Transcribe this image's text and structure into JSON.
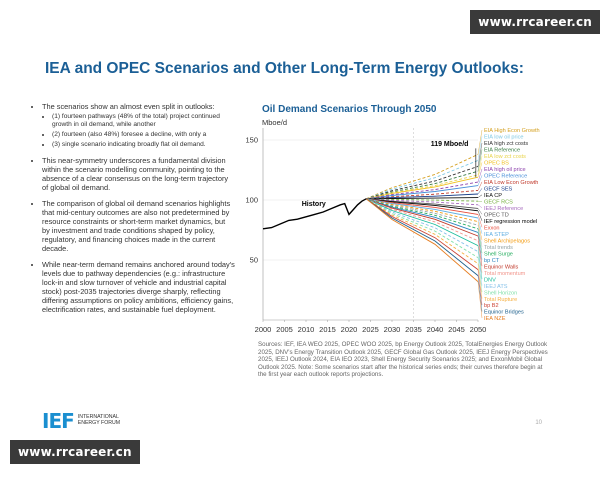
{
  "watermark": "www.rrcareer.cn",
  "slide": {
    "title": "IEA and OPEC Scenarios and Other Long-Term Energy Outlooks:",
    "bullets": {
      "b1": "The scenarios show an almost even split in outlooks:",
      "b1_sub1": "(1) fourteen pathways (48% of the total) project continued growth in oil demand, while another",
      "b1_sub2": "(2) fourteen (also 48%) foresee a decline, with only a",
      "b1_sub3": "(3) single scenario indicating broadly flat oil demand.",
      "b2": "This near-symmetry underscores a fundamental division within the scenario modelling community, pointing to the absence of a clear consensus on the long-term trajectory of global oil demand.",
      "b3": "The comparison of global oil demand scenarios highlights that mid-century outcomes are also not predetermined by resource constraints or short-term market dynamics, but by investment and trade conditions shaped by policy, regulatory, and financing choices made in the current decade.",
      "b4": "While near-term demand remains anchored around today's levels due to pathway dependencies (e.g.: infrastructure lock-in and slow turnover of vehicle and industrial capital stock) post-2035 trajectories diverge sharply, reflecting differing assumptions on policy ambitions, efficiency gains, electrification rates, and sustainable fuel deployment."
    },
    "sources": "Sources: IEF, IEA WEO 2025, OPEC WOO 2025, bp Energy Outlook 2025, TotalEnergies Energy Outlook 2025, DNV's Energy Transition Outlook 2025, GECF Global Gas Outlook 2025, IEEJ Energy Perspectives 2025, IEEJ Outlook 2024, EIA IEO 2023, Shell Energy Security Scenarios 2025; and ExxonMobil Global Outlook 2025. Note: Some scenarios start after the historical series ends; their curves therefore begin at the first year each outlook reports projections.",
    "logo": {
      "mark": "IEF",
      "text": "INTERNATIONAL ENERGY FORUM"
    },
    "page_number": "10"
  },
  "chart_data": {
    "type": "line",
    "title": "Oil Demand Scenarios Through 2050",
    "ylabel": "Mboe/d",
    "xlabel": "",
    "xlim": [
      2000,
      2050
    ],
    "ylim": [
      0,
      160
    ],
    "x_ticks": [
      "2000",
      "2005",
      "2010",
      "2015",
      "2020",
      "2025",
      "2030",
      "2035",
      "2040",
      "2045",
      "2050"
    ],
    "y_ticks": [
      "50",
      "100",
      "150"
    ],
    "annotation": "119 Mboe/d",
    "history_label": "History",
    "history": {
      "x": [
        2000,
        2002,
        2004,
        2006,
        2008,
        2010,
        2012,
        2014,
        2016,
        2018,
        2019,
        2020,
        2021,
        2022,
        2023,
        2024
      ],
      "y": [
        76,
        77,
        80,
        83,
        84,
        86,
        88,
        90,
        93,
        96,
        97,
        88,
        92,
        96,
        99,
        101
      ]
    },
    "series": [
      {
        "name": "EIA High Econ Growth",
        "color": "#d4a020",
        "style": "dash",
        "y2050": 138
      },
      {
        "name": "EIA low oil price",
        "color": "#7ec8e3",
        "style": "dash",
        "y2050": 133
      },
      {
        "name": "EIA high zct costs",
        "color": "#333333",
        "style": "dash",
        "y2050": 128
      },
      {
        "name": "EIA Reference",
        "color": "#3a7d44",
        "style": "dash",
        "y2050": 124
      },
      {
        "name": "EIA low zct costs",
        "color": "#e8d44d",
        "style": "dash",
        "y2050": 121
      },
      {
        "name": "OPEC BS",
        "color": "#f0c020",
        "style": "solid",
        "y2050": 119
      },
      {
        "name": "EIA high oil price",
        "color": "#8e44ad",
        "style": "dash",
        "y2050": 115
      },
      {
        "name": "OPEC Reference",
        "color": "#4a90d9",
        "style": "solid",
        "y2050": 112
      },
      {
        "name": "EIA Low Econ Growth",
        "color": "#c0392b",
        "style": "dash",
        "y2050": 108
      },
      {
        "name": "GECF SES",
        "color": "#1a3e8a",
        "style": "solid",
        "y2050": 105
      },
      {
        "name": "IEA CP",
        "color": "#111111",
        "style": "solid",
        "y2050": 102
      },
      {
        "name": "GECF RCS",
        "color": "#76b041",
        "style": "dash",
        "y2050": 99
      },
      {
        "name": "IEEJ Reference",
        "color": "#a569bd",
        "style": "dash",
        "y2050": 96
      },
      {
        "name": "OPEC TD",
        "color": "#555555",
        "style": "solid",
        "y2050": 93
      },
      {
        "name": "IEF regression model",
        "color": "#000000",
        "style": "solid",
        "y2050": 91
      },
      {
        "name": "Exxon",
        "color": "#e74c3c",
        "style": "solid",
        "y2050": 88
      },
      {
        "name": "IEA STEP",
        "color": "#5dade2",
        "style": "solid",
        "y2050": 85
      },
      {
        "name": "Shell Archipelagos",
        "color": "#f39c12",
        "style": "dash",
        "y2050": 82
      },
      {
        "name": "Total trends",
        "color": "#95a5a6",
        "style": "dash",
        "y2050": 79
      },
      {
        "name": "Shell Surge",
        "color": "#27ae60",
        "style": "dash",
        "y2050": 76
      },
      {
        "name": "bp CT",
        "color": "#2e86c1",
        "style": "solid",
        "y2050": 73
      },
      {
        "name": "Equinor Walls",
        "color": "#c0392b",
        "style": "solid",
        "y2050": 70
      },
      {
        "name": "Total momentum",
        "color": "#f1948a",
        "style": "dash",
        "y2050": 66
      },
      {
        "name": "DNV",
        "color": "#1abc9c",
        "style": "solid",
        "y2050": 62
      },
      {
        "name": "IEEJ ATS",
        "color": "#85c1e9",
        "style": "dash",
        "y2050": 57
      },
      {
        "name": "Shell Horizon",
        "color": "#82e0aa",
        "style": "dash",
        "y2050": 52
      },
      {
        "name": "Total Rupture",
        "color": "#f5b041",
        "style": "dash",
        "y2050": 47
      },
      {
        "name": "bp B2",
        "color": "#cb4335",
        "style": "solid",
        "y2050": 42
      },
      {
        "name": "Equinor Bridges",
        "color": "#1f618d",
        "style": "solid",
        "y2050": 37
      },
      {
        "name": "IEA NZE",
        "color": "#e67e22",
        "style": "solid",
        "y2050": 32
      }
    ]
  }
}
